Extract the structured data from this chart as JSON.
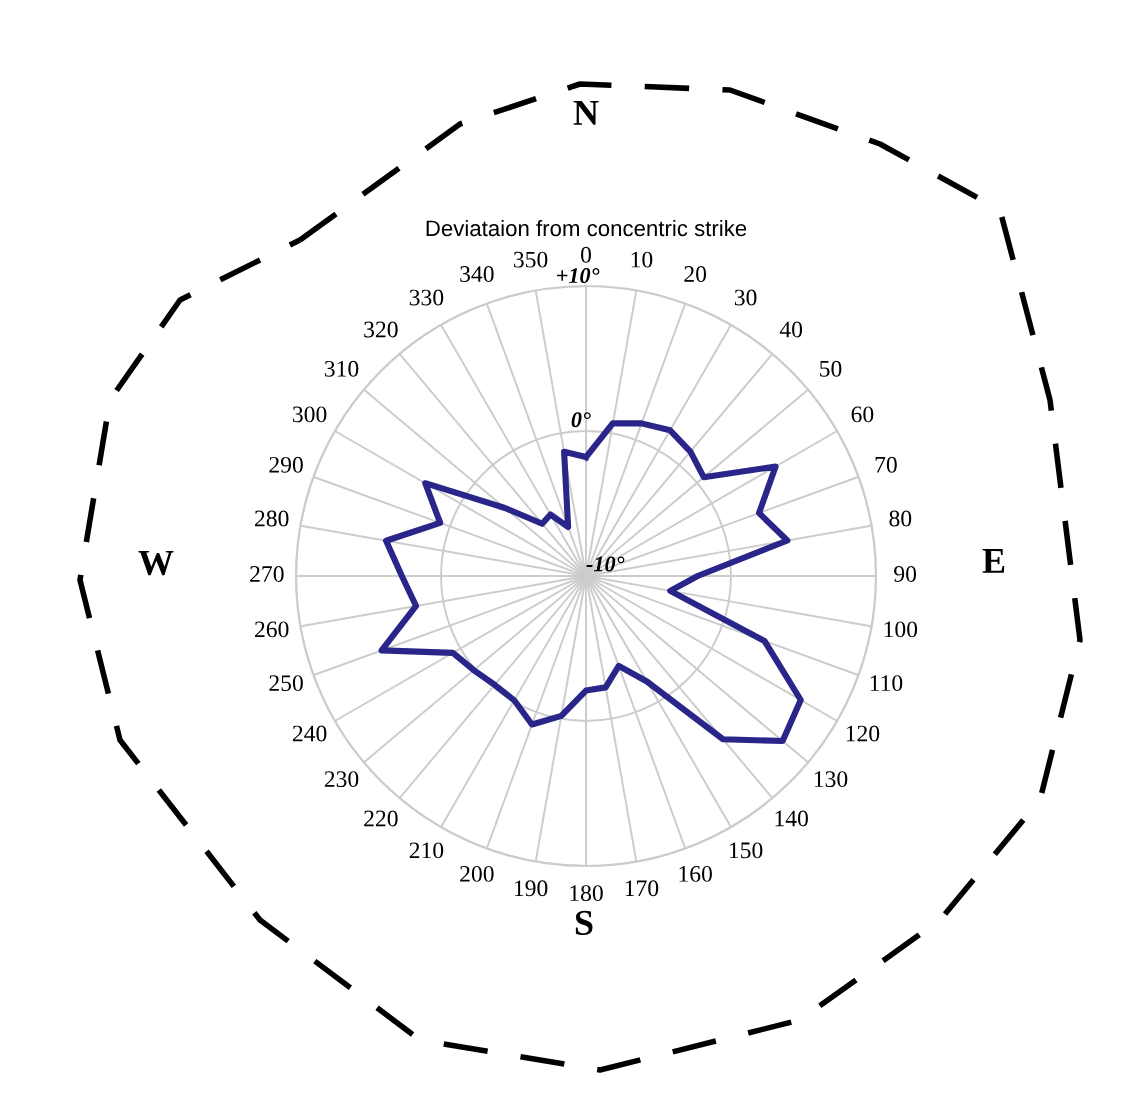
{
  "chart_data": {
    "type": "radar",
    "title": "Deviataion from concentric strike",
    "categories": [
      "0",
      "10",
      "20",
      "30",
      "40",
      "50",
      "60",
      "70",
      "80",
      "90",
      "100",
      "110",
      "120",
      "130",
      "140",
      "150",
      "160",
      "170",
      "180",
      "190",
      "200",
      "210",
      "220",
      "230",
      "240",
      "250",
      "260",
      "270",
      "280",
      "290",
      "300",
      "310",
      "320",
      "330",
      "340",
      "350"
    ],
    "series": [
      {
        "color": "#2a2689",
        "values": [
          -1.8,
          0.7,
          1.2,
          1.6,
          1.2,
          0.6,
          5.1,
          2.7,
          4.1,
          -2.3,
          -4.1,
          3.1,
          7.1,
          7.7,
          4.7,
          -1.6,
          -3.4,
          -2.2,
          -2.1,
          -0.2,
          0.9,
          -0.1,
          -0.2,
          0.1,
          0.6,
          5.0,
          1.9,
          2.7,
          4.0,
          0.7,
          2.8,
          -2.7,
          -5.3,
          -5.1,
          -6.4,
          -1.3
        ]
      }
    ],
    "ylim": [
      -10,
      10
    ],
    "yticks": [
      {
        "value": -10,
        "label": "-10°"
      },
      {
        "value": 0,
        "label": "0°"
      },
      {
        "value": 10,
        "label": "+10°"
      }
    ],
    "grid": true,
    "marker": "none",
    "line_style": "solid",
    "annotations": [
      "N",
      "E",
      "S",
      "W"
    ]
  }
}
